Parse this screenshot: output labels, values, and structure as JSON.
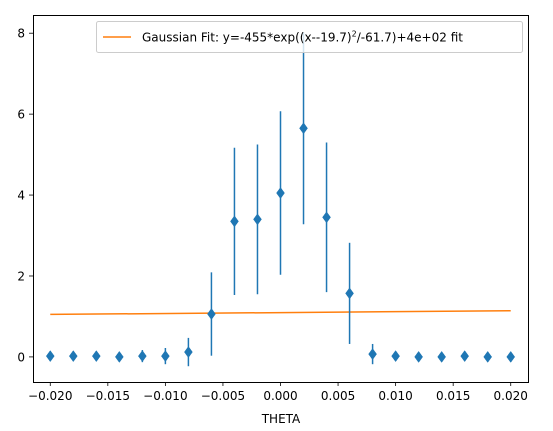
{
  "chart_data": {
    "type": "scatter",
    "xlabel": "THETA",
    "ylabel": "",
    "xlim": [
      -0.0215,
      0.0215
    ],
    "ylim": [
      -0.62,
      8.45
    ],
    "xticks": [
      -0.02,
      -0.015,
      -0.01,
      -0.005,
      0.0,
      0.005,
      0.01,
      0.015,
      0.02
    ],
    "xtick_labels": [
      "−0.020",
      "−0.015",
      "−0.010",
      "−0.005",
      "0.000",
      "0.005",
      "0.010",
      "0.015",
      "0.020"
    ],
    "yticks": [
      0,
      2,
      4,
      6,
      8
    ],
    "ytick_labels": [
      "0",
      "2",
      "4",
      "6",
      "8"
    ],
    "grid": false,
    "legend_position": "top-right",
    "data_series": {
      "marker": "diamond",
      "color": "#1f77b4",
      "x": [
        -0.02,
        -0.018,
        -0.016,
        -0.014,
        -0.012,
        -0.01,
        -0.008,
        -0.006,
        -0.004,
        -0.002,
        0.0,
        0.002,
        0.004,
        0.006,
        0.008,
        0.01,
        0.012,
        0.014,
        0.016,
        0.018,
        0.02
      ],
      "y": [
        0.02,
        0.02,
        0.02,
        0.0,
        0.02,
        0.02,
        0.12,
        1.06,
        3.35,
        3.4,
        4.05,
        5.65,
        3.45,
        1.57,
        0.07,
        0.02,
        0.0,
        0.0,
        0.02,
        0.0,
        0.0
      ],
      "yerr": [
        0.1,
        0.1,
        0.1,
        0.1,
        0.15,
        0.2,
        0.35,
        1.03,
        1.82,
        1.85,
        2.02,
        2.37,
        1.85,
        1.25,
        0.25,
        0.1,
        0.1,
        0.1,
        0.1,
        0.1,
        0.1
      ]
    },
    "fit_series": {
      "name": "Gaussian Fit: y=-455*exp((x--19.7)^2/-61.7)+4e+02 fit",
      "legend_main": "Gaussian Fit: y=-455*exp((x--19.7)",
      "legend_sup": "2",
      "legend_tail": "/-61.7)+4e+02 fit",
      "color": "#ff7f0e",
      "x": [
        -0.02,
        0.02
      ],
      "y": [
        1.05,
        1.14
      ]
    }
  }
}
